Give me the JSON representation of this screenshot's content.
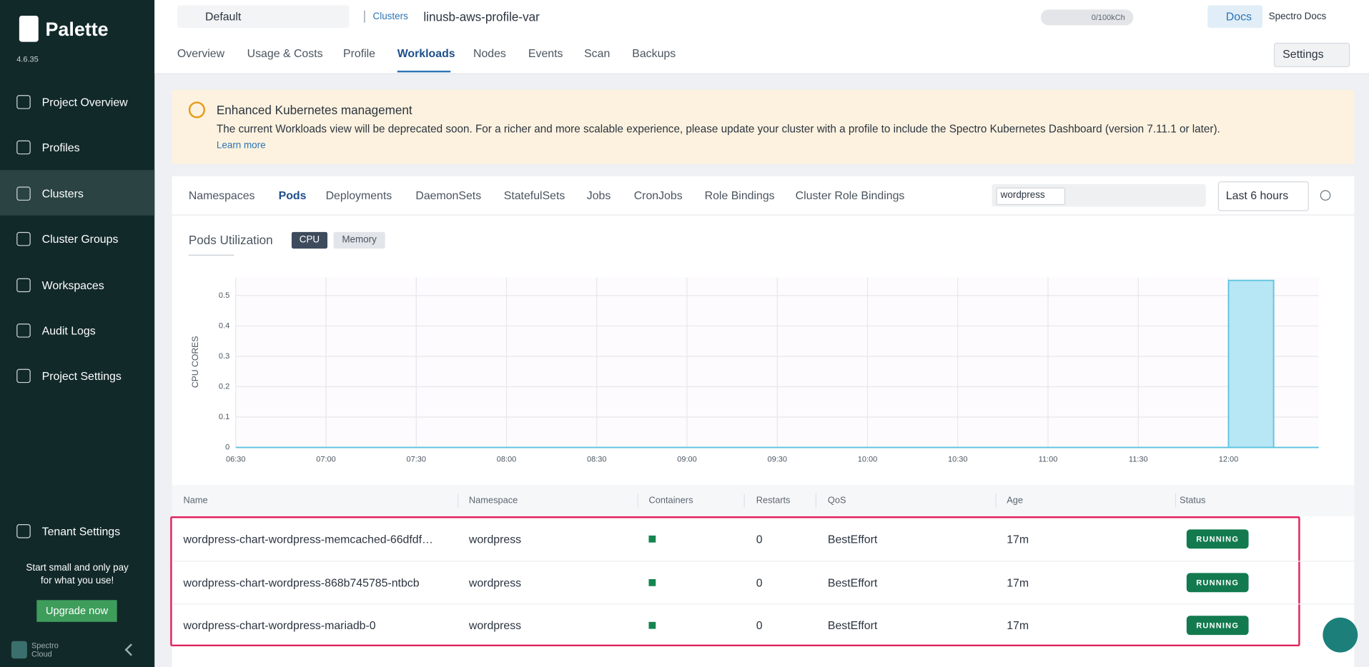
{
  "sidebar": {
    "brand": "Palette",
    "version": "4.6.35",
    "nav": [
      "Project Overview",
      "Profiles",
      "Clusters",
      "Cluster Groups",
      "Workspaces",
      "Audit Logs",
      "Project Settings"
    ],
    "tenant": "Tenant Settings",
    "promo": [
      "Start small and only pay",
      "for what you use!"
    ],
    "upgrade": "Upgrade now",
    "company": [
      "Spectro",
      "Cloud"
    ]
  },
  "header": {
    "project": "Default",
    "breadcrumb": [
      "Clusters",
      "linusb-aws-profile-var"
    ],
    "usage": "0/100kCh",
    "docs": "Docs",
    "user": "Spectro Docs",
    "tabs": [
      "Overview",
      "Usage & Costs",
      "Profile",
      "Workloads",
      "Nodes",
      "Events",
      "Scan",
      "Backups"
    ],
    "settings": "Settings"
  },
  "banner": {
    "title": "Enhanced Kubernetes management",
    "text": "The current Workloads view will be deprecated soon. For a richer and more scalable experience, please update your cluster with a profile to include the Spectro Kubernetes Dashboard (version 7.11.1 or later).",
    "link": "Learn more"
  },
  "workloads": {
    "tabs": [
      "Namespaces",
      "Pods",
      "Deployments",
      "DaemonSets",
      "StatefulSets",
      "Jobs",
      "CronJobs",
      "Role Bindings",
      "Cluster Role Bindings"
    ],
    "filter": "wordpress",
    "range": "Last 6 hours"
  },
  "chart_data": {
    "type": "area",
    "title": "Pods Utilization",
    "toggles": [
      "CPU",
      "Memory"
    ],
    "ylabel": "CPU CORES",
    "x": [
      "06:30",
      "12:00",
      "12:00",
      "12:15",
      "12:15",
      "12:30"
    ],
    "values": [
      0,
      0,
      0.55,
      0.55,
      0,
      0
    ],
    "color": "#b7e6f5",
    "xlim": [
      "06:30",
      "12:30"
    ],
    "xticks": [
      "06:30",
      "07:00",
      "07:30",
      "08:00",
      "08:30",
      "09:00",
      "09:30",
      "10:00",
      "10:30",
      "11:00",
      "11:30",
      "12:00"
    ],
    "ylim": [
      0,
      0.56
    ],
    "yticks": [
      0,
      0.1,
      0.2,
      0.3,
      0.4,
      0.5
    ],
    "grid": true
  },
  "table": {
    "columns": [
      "Name",
      "Namespace",
      "Containers",
      "Restarts",
      "QoS",
      "Age",
      "Status"
    ],
    "rows": [
      [
        "wordpress-chart-wordpress-memcached-66dfdf…",
        "wordpress",
        0,
        "BestEffort",
        "17m",
        "RUNNING"
      ],
      [
        "wordpress-chart-wordpress-868b745785-ntbcb",
        "wordpress",
        0,
        "BestEffort",
        "17m",
        "RUNNING"
      ],
      [
        "wordpress-chart-wordpress-mariadb-0",
        "wordpress",
        0,
        "BestEffort",
        "17m",
        "RUNNING"
      ]
    ]
  }
}
